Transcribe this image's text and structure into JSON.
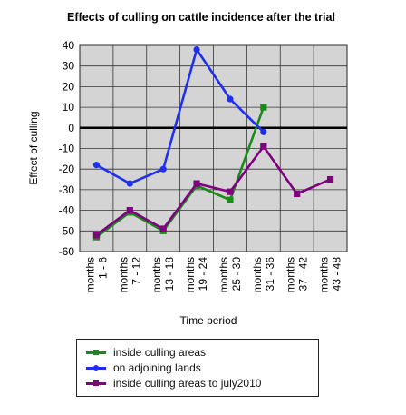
{
  "chart_data": {
    "type": "line",
    "title": "Effects of culling on cattle incidence after the trial",
    "xlabel": "Time period",
    "ylabel": "Effect of culling",
    "categories": [
      "months 1 - 6",
      "months 7 - 12",
      "months 13 - 18",
      "months 19 - 24",
      "months 25 - 30",
      "months 31 - 36",
      "months 37 - 42",
      "months 43 - 48"
    ],
    "category_lines": [
      [
        "months",
        "1 - 6"
      ],
      [
        "months",
        "7 - 12"
      ],
      [
        "months",
        "13 - 18"
      ],
      [
        "months",
        "19 - 24"
      ],
      [
        "months",
        "25 - 30"
      ],
      [
        "months",
        "31 - 36"
      ],
      [
        "months",
        "37 - 42"
      ],
      [
        "months",
        "43 - 48"
      ]
    ],
    "ylim": [
      -60,
      40
    ],
    "yticks": [
      40,
      30,
      20,
      10,
      0,
      -10,
      -20,
      -30,
      -40,
      -50,
      -60
    ],
    "grid": true,
    "legend_position": "bottom",
    "series": [
      {
        "name": "inside culling areas",
        "color": "#1a8a1a",
        "marker": "square",
        "values": [
          -53,
          -41,
          -50,
          -28,
          -35,
          10,
          null,
          null
        ]
      },
      {
        "name": "on adjoining lands",
        "color": "#1f2ff0",
        "marker": "circle",
        "values": [
          -18,
          -27,
          -20,
          38,
          14,
          -2,
          null,
          null
        ]
      },
      {
        "name": "inside culling areas to july2010",
        "color": "#800080",
        "marker": "square",
        "values": [
          -52,
          -40,
          -49,
          -27,
          -31,
          -9,
          -32,
          -25
        ]
      }
    ]
  }
}
